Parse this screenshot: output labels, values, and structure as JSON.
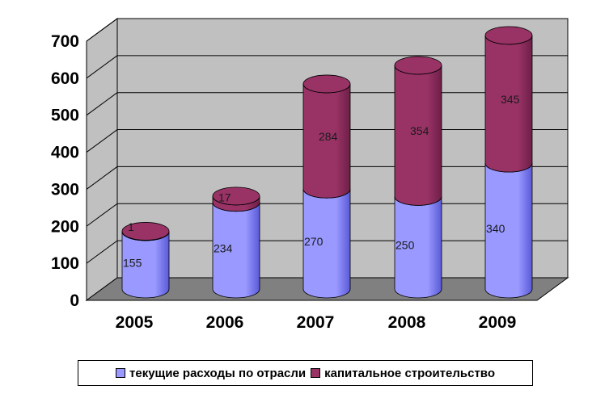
{
  "colors": {
    "series1": "#9999ff",
    "series1_dark": "#5a5ad8",
    "series2": "#993366",
    "series2_dark": "#6e1f47",
    "wall": "#c0c0c0",
    "floor": "#808080"
  },
  "chart_data": {
    "type": "bar",
    "style": "3d-stacked-cylinder",
    "categories": [
      "2005",
      "2006",
      "2007",
      "2008",
      "2009"
    ],
    "series": [
      {
        "name": "текущие расходы по отрасли",
        "values": [
          155,
          234,
          270,
          250,
          340
        ],
        "labels": [
          "155",
          "234",
          "270",
          "250",
          "340"
        ]
      },
      {
        "name": "капитальное строительство",
        "values": [
          1,
          17,
          284,
          354,
          345
        ],
        "labels": [
          "1",
          "17",
          "284",
          "354",
          "345"
        ]
      }
    ],
    "y_ticks": [
      "0",
      "100",
      "200",
      "300",
      "400",
      "500",
      "600",
      "700"
    ],
    "ylim": [
      0,
      700
    ],
    "grid": true,
    "legend_position": "bottom"
  }
}
